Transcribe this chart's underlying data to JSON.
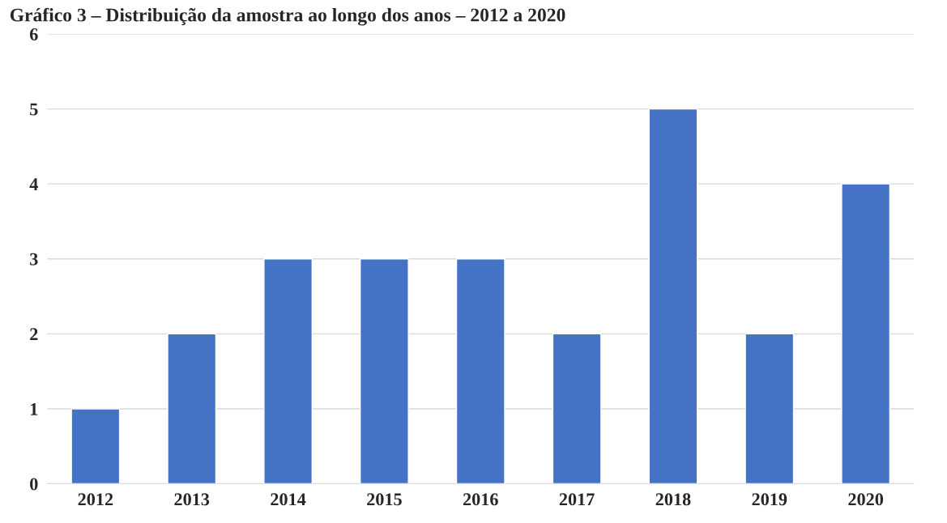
{
  "chart_data": {
    "type": "bar",
    "title": "Gráfico 3 – Distribuição da amostra ao longo dos anos – 2012 a 2020",
    "categories": [
      "2012",
      "2013",
      "2014",
      "2015",
      "2016",
      "2017",
      "2018",
      "2019",
      "2020"
    ],
    "values": [
      1,
      2,
      3,
      3,
      3,
      2,
      5,
      2,
      4
    ],
    "color": "#4472c4",
    "ylim": [
      0,
      6
    ],
    "yticks": [
      0,
      1,
      2,
      3,
      4,
      5,
      6
    ],
    "grid": "y",
    "legend": false
  }
}
